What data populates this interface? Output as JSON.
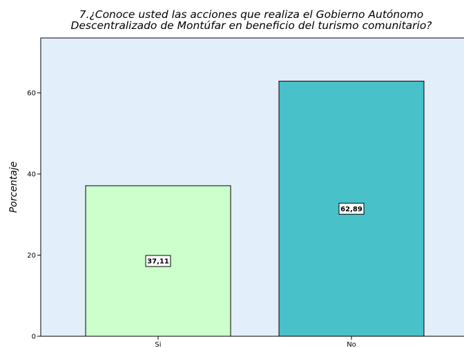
{
  "chart_data": {
    "type": "bar",
    "title_lines": [
      "7.¿Conoce usted las acciones que realiza el Gobierno Autónomo",
      "Descentralizado de Montúfar en beneficio del turismo comunitario?"
    ],
    "xlabel": "",
    "ylabel": "Porcentaje",
    "categories": [
      "Si",
      "No"
    ],
    "values": [
      37.11,
      62.89
    ],
    "data_labels": [
      "37,11",
      "62,89"
    ],
    "bar_colors": [
      "#CCFFCC",
      "#48C1C8"
    ],
    "ylim": [
      0,
      70
    ],
    "yticks": [
      0,
      20,
      40,
      60
    ],
    "grid": false,
    "plot_background": "#E3EEFB"
  }
}
